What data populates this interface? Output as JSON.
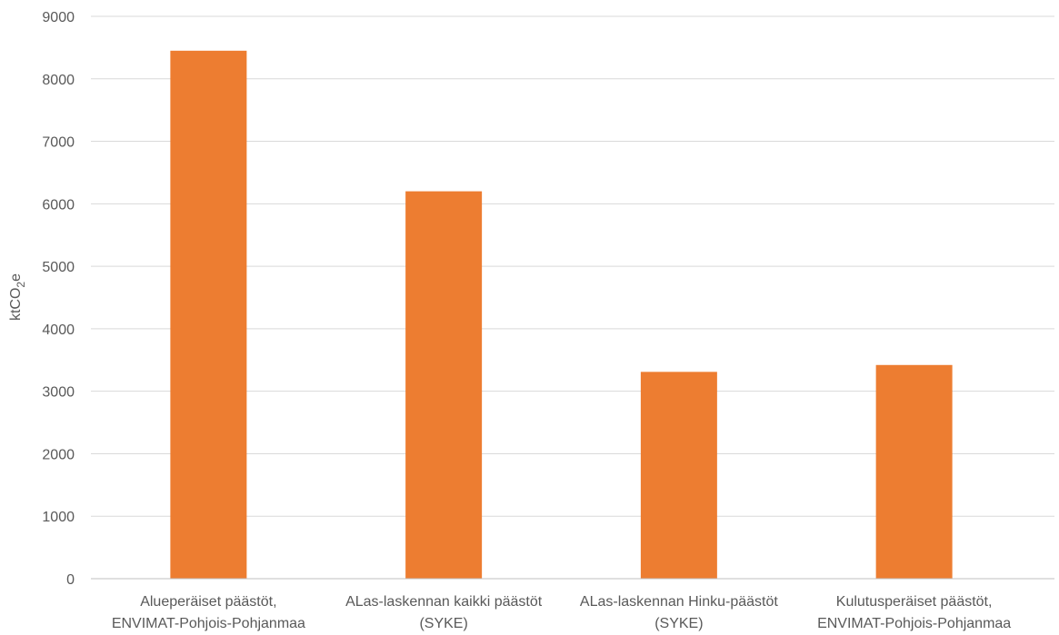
{
  "chart_data": {
    "type": "bar",
    "categories": [
      [
        "Alueperäiset päästöt,",
        "ENVIMAT-Pohjois-Pohjanmaa"
      ],
      [
        "ALas-laskennan kaikki päästöt",
        "(SYKE)"
      ],
      [
        "ALas-laskennan Hinku-päästöt",
        "(SYKE)"
      ],
      [
        "Kulutusperäiset päästöt,",
        "ENVIMAT-Pohjois-Pohjanmaa"
      ]
    ],
    "values": [
      8450,
      6200,
      3310,
      3420
    ],
    "ylabel": {
      "main": "ktCO",
      "sub": "2",
      "suffix": "e"
    },
    "ylim": [
      0,
      9000
    ],
    "yticks": [
      0,
      1000,
      2000,
      3000,
      4000,
      5000,
      6000,
      7000,
      8000,
      9000
    ],
    "grid": true,
    "bar_color": "#ED7D31",
    "legend": "none"
  }
}
